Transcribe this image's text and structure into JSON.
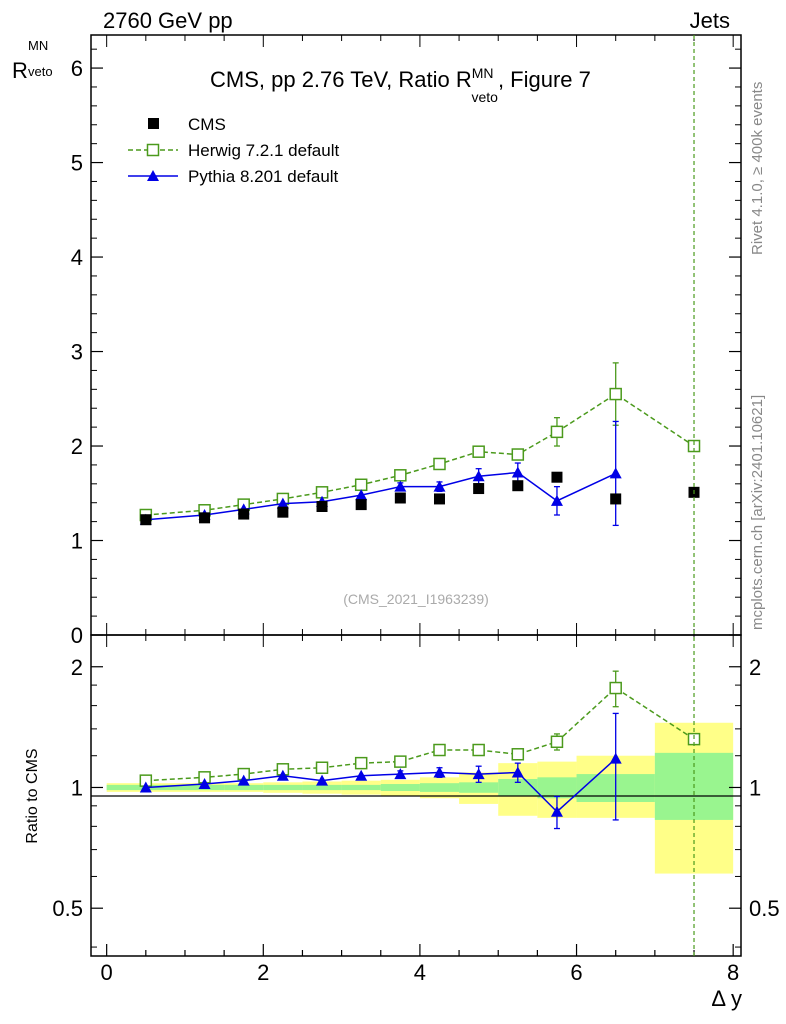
{
  "header": {
    "left": "2760 GeV pp",
    "right": "Jets"
  },
  "chart_data": [
    {
      "type": "scatter",
      "title": "CMS, pp 2.76 TeV, Ratio R",
      "title_sup": "MN",
      "title_sub": "veto",
      "title_suffix": ", Figure 7",
      "ylabel": "R",
      "ylabel_sup": "MN",
      "ylabel_sub": "veto",
      "xlim": [
        -0.2,
        8.1
      ],
      "ylim": [
        0,
        6.35
      ],
      "yticks": [
        0,
        1,
        2,
        3,
        4,
        5,
        6
      ],
      "watermark": "(CMS_2021_I1963239)",
      "legend": {
        "placement": "top-left",
        "entries": [
          "CMS",
          "Herwig 7.2.1 default",
          "Pythia 8.201 default"
        ]
      },
      "series": [
        {
          "name": "CMS",
          "color": "#000000",
          "marker": "filled-square",
          "x": [
            0.5,
            1.25,
            1.75,
            2.25,
            2.75,
            3.25,
            3.75,
            4.25,
            4.75,
            5.25,
            5.75,
            6.5,
            7.5
          ],
          "y": [
            1.22,
            1.24,
            1.28,
            1.3,
            1.36,
            1.38,
            1.45,
            1.44,
            1.55,
            1.58,
            1.67,
            1.44,
            1.51
          ]
        },
        {
          "name": "Herwig 7.2.1 default",
          "color": "#4b9a1c",
          "marker": "open-square",
          "linestyle": "dashed",
          "x": [
            0.5,
            1.25,
            1.75,
            2.25,
            2.75,
            3.25,
            3.75,
            4.25,
            4.75,
            5.25,
            5.75,
            6.5,
            7.5
          ],
          "y": [
            1.27,
            1.32,
            1.38,
            1.44,
            1.51,
            1.59,
            1.69,
            1.81,
            1.94,
            1.91,
            2.15,
            2.55,
            2.0
          ],
          "err": [
            0,
            0,
            0,
            0,
            0,
            0,
            0,
            0,
            0,
            0,
            0.15,
            0.33,
            0
          ]
        },
        {
          "name": "Pythia 8.201 default",
          "color": "#0000e6",
          "marker": "filled-triangle",
          "linestyle": "solid",
          "x": [
            0.5,
            1.25,
            1.75,
            2.25,
            2.75,
            3.25,
            3.75,
            4.25,
            4.75,
            5.25,
            5.75,
            6.5
          ],
          "y": [
            1.22,
            1.27,
            1.33,
            1.39,
            1.41,
            1.48,
            1.57,
            1.57,
            1.68,
            1.72,
            1.42,
            1.71
          ],
          "err": [
            0,
            0,
            0,
            0,
            0,
            0,
            0.04,
            0.05,
            0.08,
            0.1,
            0.15,
            0.55
          ]
        }
      ]
    },
    {
      "type": "scatter",
      "ylabel": "Ratio to CMS",
      "xlabel": "Δ y",
      "xlim": [
        -0.2,
        8.1
      ],
      "ylim": [
        0.38,
        2.4
      ],
      "yscale": "log",
      "yticks": [
        0.5,
        1,
        2
      ],
      "ytick_labels": [
        "0.5",
        "1",
        "2"
      ],
      "xticks": [
        0,
        2,
        4,
        6,
        8
      ],
      "xtick_labels": [
        "0",
        "2",
        "4",
        "6",
        "8"
      ],
      "reference_line": 1,
      "uncertainty_bands": {
        "edges": [
          0,
          1.0,
          1.5,
          2.0,
          2.5,
          3.0,
          3.5,
          4.0,
          4.5,
          5.0,
          5.5,
          6.0,
          7.0,
          8.0
        ],
        "stat_lo": [
          0.985,
          0.985,
          0.985,
          0.985,
          0.985,
          0.985,
          0.98,
          0.975,
          0.97,
          0.95,
          0.94,
          0.92,
          0.83
        ],
        "stat_hi": [
          1.015,
          1.015,
          1.015,
          1.015,
          1.015,
          1.015,
          1.02,
          1.025,
          1.03,
          1.05,
          1.06,
          1.08,
          1.22
        ],
        "total_lo": [
          0.975,
          0.975,
          0.975,
          0.97,
          0.965,
          0.96,
          0.955,
          0.94,
          0.91,
          0.85,
          0.84,
          0.84,
          0.61
        ],
        "total_hi": [
          1.025,
          1.025,
          1.025,
          1.03,
          1.035,
          1.04,
          1.045,
          1.06,
          1.09,
          1.15,
          1.16,
          1.2,
          1.45
        ]
      },
      "series": [
        {
          "name": "Herwig 7.2.1 default",
          "color": "#4b9a1c",
          "x": [
            0.5,
            1.25,
            1.75,
            2.25,
            2.75,
            3.25,
            3.75,
            4.25,
            4.75,
            5.25,
            5.75,
            6.5,
            7.5
          ],
          "y": [
            1.04,
            1.06,
            1.08,
            1.11,
            1.12,
            1.15,
            1.16,
            1.24,
            1.24,
            1.21,
            1.3,
            1.77,
            1.32
          ],
          "err": [
            0,
            0,
            0,
            0,
            0,
            0,
            0,
            0,
            0,
            0,
            0.06,
            0.18,
            0
          ]
        },
        {
          "name": "Pythia 8.201 default",
          "color": "#0000e6",
          "x": [
            0.5,
            1.25,
            1.75,
            2.25,
            2.75,
            3.25,
            3.75,
            4.25,
            4.75,
            5.25,
            5.75,
            6.5
          ],
          "y": [
            1.0,
            1.02,
            1.04,
            1.07,
            1.04,
            1.07,
            1.08,
            1.09,
            1.08,
            1.09,
            0.87,
            1.18
          ],
          "err": [
            0,
            0,
            0,
            0,
            0,
            0,
            0.02,
            0.03,
            0.05,
            0.06,
            0.08,
            0.35
          ]
        }
      ]
    }
  ],
  "side_labels": {
    "rivet": "Rivet 4.1.0, ≥ 400k events",
    "mcplots": "mcplots.cern.ch [arXiv:2401.10621]"
  }
}
